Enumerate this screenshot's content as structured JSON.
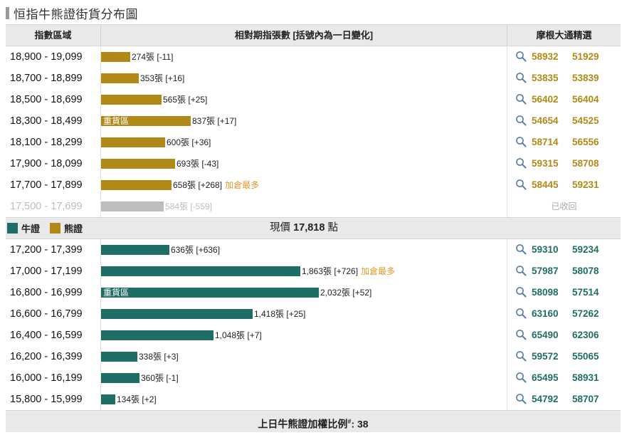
{
  "title": "恒指牛熊證街貨分布圖",
  "header": {
    "col_range": "指數區域",
    "col_count": "相對期指張數 [括號內為一日變化]",
    "col_picks": "摩根大通精選"
  },
  "legend": {
    "bull_label": "牛證",
    "bear_label": "熊證",
    "bull_color": "#1f6e65",
    "bear_color": "#b08916"
  },
  "current_price": {
    "label": "現價",
    "value": "17,818",
    "unit": "點"
  },
  "bear_rows": [
    {
      "range": "18,900 - 19,099",
      "count": 274,
      "count_text": "274張 [-11]",
      "note": "",
      "zone_label": "",
      "codes": [
        "58932",
        "51929"
      ],
      "recalled_text": ""
    },
    {
      "range": "18,700 - 18,899",
      "count": 353,
      "count_text": "353張 [+16]",
      "note": "",
      "zone_label": "",
      "codes": [
        "53835",
        "53839"
      ],
      "recalled_text": ""
    },
    {
      "range": "18,500 - 18,699",
      "count": 565,
      "count_text": "565張 [+25]",
      "note": "",
      "zone_label": "",
      "codes": [
        "56402",
        "56404"
      ],
      "recalled_text": ""
    },
    {
      "range": "18,300 - 18,499",
      "count": 837,
      "count_text": "837張 [+17]",
      "note": "",
      "zone_label": "重貨區",
      "codes": [
        "54654",
        "54525"
      ],
      "recalled_text": ""
    },
    {
      "range": "18,100 - 18,299",
      "count": 600,
      "count_text": "600張 [+36]",
      "note": "",
      "zone_label": "",
      "codes": [
        "58714",
        "56556"
      ],
      "recalled_text": ""
    },
    {
      "range": "17,900 - 18,099",
      "count": 693,
      "count_text": "693張 [-43]",
      "note": "",
      "zone_label": "",
      "codes": [
        "59315",
        "58708"
      ],
      "recalled_text": ""
    },
    {
      "range": "17,700 - 17,899",
      "count": 658,
      "count_text": "658張 [+268]",
      "note": "加倉最多",
      "zone_label": "",
      "codes": [
        "58445",
        "59231"
      ],
      "recalled_text": ""
    },
    {
      "range": "17,500 - 17,699",
      "count": 584,
      "count_text": "584張 [-559]",
      "note": "",
      "zone_label": "",
      "codes": [],
      "recalled_text": "已收回"
    }
  ],
  "bull_rows": [
    {
      "range": "17,200 - 17,399",
      "count": 636,
      "count_text": "636張 [+636]",
      "note": "",
      "zone_label": "",
      "codes": [
        "59310",
        "59234"
      ]
    },
    {
      "range": "17,000 - 17,199",
      "count": 1863,
      "count_text": "1,863張 [+726]",
      "note": "加倉最多",
      "zone_label": "",
      "codes": [
        "57987",
        "58078"
      ]
    },
    {
      "range": "16,800 - 16,999",
      "count": 2032,
      "count_text": "2,032張 [+52]",
      "note": "",
      "zone_label": "重貨區",
      "codes": [
        "58098",
        "57514"
      ]
    },
    {
      "range": "16,600 - 16,799",
      "count": 1418,
      "count_text": "1,418張 [+25]",
      "note": "",
      "zone_label": "",
      "codes": [
        "63160",
        "57262"
      ]
    },
    {
      "range": "16,400 - 16,599",
      "count": 1048,
      "count_text": "1,048張 [+7]",
      "note": "",
      "zone_label": "",
      "codes": [
        "65490",
        "62306"
      ]
    },
    {
      "range": "16,200 - 16,399",
      "count": 338,
      "count_text": "338張 [+3]",
      "note": "",
      "zone_label": "",
      "codes": [
        "59572",
        "55065"
      ]
    },
    {
      "range": "16,000 - 16,199",
      "count": 360,
      "count_text": "360張 [-1]",
      "note": "",
      "zone_label": "",
      "codes": [
        "65495",
        "58931"
      ]
    },
    {
      "range": "15,800 - 15,999",
      "count": 134,
      "count_text": "134張 [+2]",
      "note": "",
      "zone_label": "",
      "codes": [
        "54792",
        "58707"
      ]
    }
  ],
  "footer": {
    "label": "上日牛熊證加權比例",
    "mark": "#",
    "value": ": 38"
  }
}
